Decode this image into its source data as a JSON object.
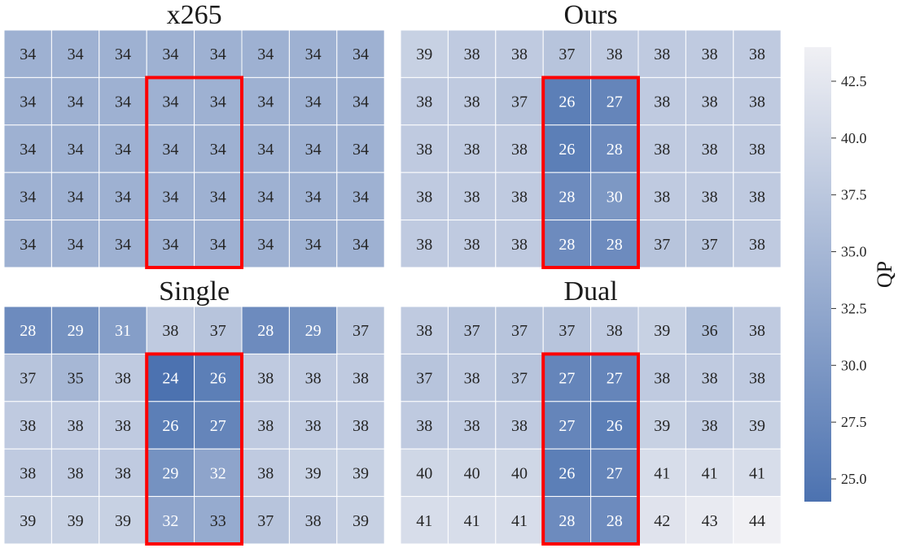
{
  "chart_data": [
    {
      "type": "heatmap",
      "title": "x265",
      "values": [
        [
          34,
          34,
          34,
          34,
          34,
          34,
          34,
          34
        ],
        [
          34,
          34,
          34,
          34,
          34,
          34,
          34,
          34
        ],
        [
          34,
          34,
          34,
          34,
          34,
          34,
          34,
          34
        ],
        [
          34,
          34,
          34,
          34,
          34,
          34,
          34,
          34
        ],
        [
          34,
          34,
          34,
          34,
          34,
          34,
          34,
          34
        ]
      ],
      "highlight": {
        "row_start": 1,
        "row_end": 4,
        "col_start": 3,
        "col_end": 4
      }
    },
    {
      "type": "heatmap",
      "title": "Ours",
      "values": [
        [
          39,
          38,
          38,
          37,
          38,
          38,
          38,
          38
        ],
        [
          38,
          38,
          37,
          26,
          27,
          38,
          38,
          38
        ],
        [
          38,
          38,
          38,
          26,
          28,
          38,
          38,
          38
        ],
        [
          38,
          38,
          38,
          28,
          30,
          38,
          38,
          38
        ],
        [
          38,
          38,
          38,
          28,
          28,
          37,
          37,
          38
        ]
      ],
      "highlight": {
        "row_start": 1,
        "row_end": 4,
        "col_start": 3,
        "col_end": 4
      }
    },
    {
      "type": "heatmap",
      "title": "Single",
      "values": [
        [
          28,
          29,
          31,
          38,
          37,
          28,
          29,
          37
        ],
        [
          37,
          35,
          38,
          24,
          26,
          38,
          38,
          38
        ],
        [
          38,
          38,
          38,
          26,
          27,
          38,
          38,
          38
        ],
        [
          38,
          38,
          38,
          29,
          32,
          38,
          39,
          39
        ],
        [
          39,
          39,
          39,
          32,
          33,
          37,
          38,
          39
        ]
      ],
      "highlight": {
        "row_start": 1,
        "row_end": 4,
        "col_start": 3,
        "col_end": 4
      }
    },
    {
      "type": "heatmap",
      "title": "Dual",
      "values": [
        [
          38,
          37,
          37,
          37,
          38,
          39,
          36,
          38
        ],
        [
          37,
          38,
          37,
          27,
          27,
          38,
          38,
          38
        ],
        [
          38,
          38,
          38,
          27,
          26,
          39,
          38,
          39
        ],
        [
          40,
          40,
          40,
          26,
          27,
          41,
          41,
          41
        ],
        [
          41,
          41,
          41,
          28,
          28,
          42,
          43,
          44
        ]
      ],
      "highlight": {
        "row_start": 1,
        "row_end": 4,
        "col_start": 3,
        "col_end": 4
      }
    }
  ],
  "colorbar": {
    "label": "QP",
    "range": [
      24,
      44
    ],
    "ticks": [
      "25.0",
      "27.5",
      "30.0",
      "32.5",
      "35.0",
      "37.5",
      "40.0",
      "42.5"
    ],
    "color_low": "#4c72b0",
    "color_high": "#f0f0f4"
  },
  "highlight_color": "#ff0000"
}
